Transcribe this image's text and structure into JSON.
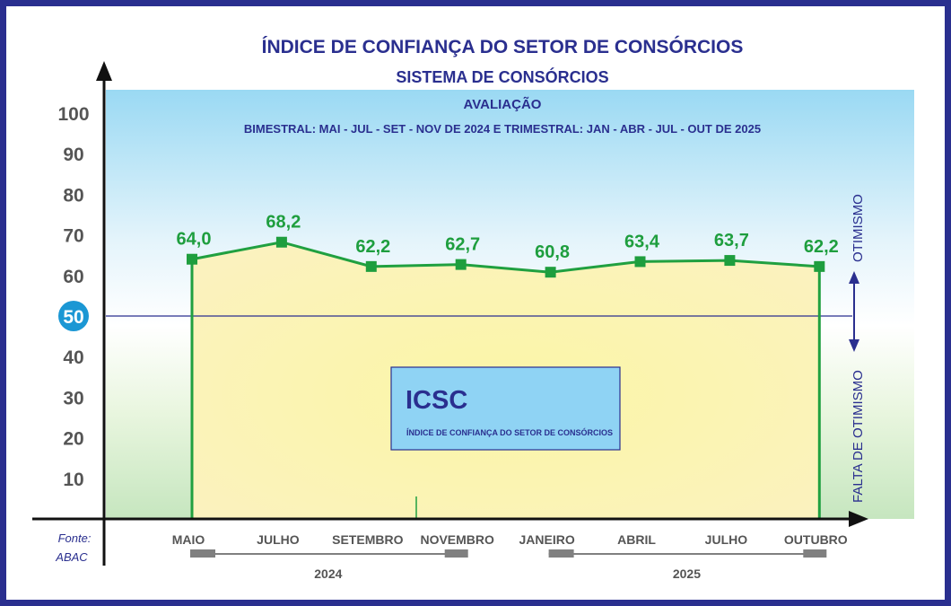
{
  "colors": {
    "frame": "#2a2f8f",
    "title": "#2a2f8f",
    "line": "#20a040",
    "marker": "#1e9e3e",
    "value_label": "#1e9e3e",
    "axis": "#111111",
    "tick_label": "#555555",
    "reference": "#2a2f8f",
    "highlight_circle": "#1b97d4",
    "icsc_box_fill": "#8fd3f4",
    "icsc_box_border": "#2a2f8f",
    "year_bar": "#808080"
  },
  "header": {
    "title": "ÍNDICE DE CONFIANÇA DO SETOR DE CONSÓRCIOS",
    "subtitle": "SISTEMA DE CONSÓRCIOS",
    "evaluation_label": "AVALIAÇÃO",
    "period_note": "BIMESTRAL: MAI - JUL - SET - NOV DE 2024 E TRIMESTRAL: JAN - ABR - JUL - OUT DE 2025"
  },
  "icsc_box": {
    "acronym": "ICSC",
    "full_name": "ÍNDICE DE CONFIANÇA DO SETOR DE CONSÓRCIOS"
  },
  "zones": {
    "upper": "OTIMISMO",
    "lower": "FALTA DE OTIMISMO"
  },
  "source": {
    "label": "Fonte:",
    "name": "ABAC"
  },
  "years": [
    {
      "label": "2024",
      "first_index": 0,
      "last_index": 3
    },
    {
      "label": "2025",
      "first_index": 4,
      "last_index": 7
    }
  ],
  "chart_data": {
    "type": "line",
    "title": "ÍNDICE DE CONFIANÇA DO SETOR DE CONSÓRCIOS",
    "categories": [
      "MAIO",
      "JULHO",
      "SETEMBRO",
      "NOVEMBRO",
      "JANEIRO",
      "ABRIL",
      "JULHO",
      "OUTUBRO"
    ],
    "values": [
      64.0,
      68.2,
      62.2,
      62.7,
      60.8,
      63.4,
      63.7,
      62.2
    ],
    "value_labels": [
      "64,0",
      "68,2",
      "62,2",
      "62,7",
      "60,8",
      "63,4",
      "63,7",
      "62,2"
    ],
    "y_ticks": [
      "10",
      "20",
      "30",
      "40",
      "50",
      "60",
      "70",
      "80",
      "90",
      "100"
    ],
    "ylim": [
      0,
      100
    ],
    "reference_line": 50,
    "highlighted_tick": "50",
    "grid": false,
    "legend": "none"
  }
}
